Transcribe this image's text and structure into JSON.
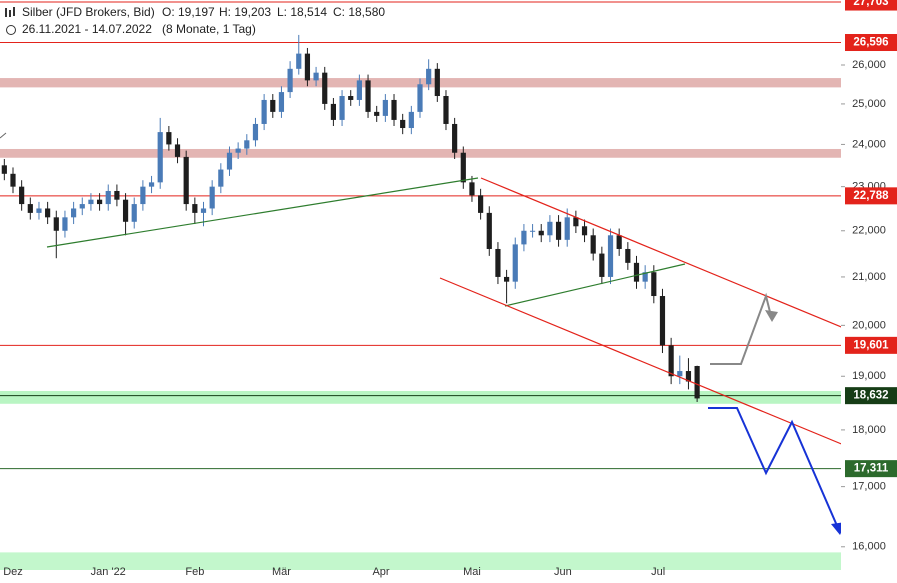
{
  "chart_data": {
    "type": "candlestick",
    "title": "Silber (JFD Brokers, Bid)",
    "ohlc_text": [
      "O: 19,197",
      "H: 19,203",
      "L: 18,514",
      "C: 18,580"
    ],
    "subtitle": "26.11.2021 - 14.07.2022",
    "period": "(8 Monate, 1 Tag)",
    "log_scale": true,
    "up_color": "#4a7bb7",
    "down_color": "#1e1e1e",
    "xlim": [
      -0.5,
      96.5
    ],
    "xticks": [
      {
        "value": 1,
        "label": "Dez"
      },
      {
        "value": 12,
        "label": "Jan '22"
      },
      {
        "value": 22,
        "label": "Feb"
      },
      {
        "value": 32,
        "label": "Mär"
      },
      {
        "value": 43.5,
        "label": "Apr"
      },
      {
        "value": 54,
        "label": "Mai"
      },
      {
        "value": 64.5,
        "label": "Jun"
      },
      {
        "value": 75.5,
        "label": "Jul"
      }
    ],
    "ylim": [
      15630,
      27760
    ],
    "yticks": [
      {
        "value": 16000,
        "label": "16,000"
      },
      {
        "value": 17000,
        "label": "17,000"
      },
      {
        "value": 18000,
        "label": "18,000"
      },
      {
        "value": 19000,
        "label": "19,000"
      },
      {
        "value": 20000,
        "label": "20,000"
      },
      {
        "value": 21000,
        "label": "21,000"
      },
      {
        "value": 22000,
        "label": "22,000"
      },
      {
        "value": 23000,
        "label": "23,000"
      },
      {
        "value": 24000,
        "label": "24,000"
      },
      {
        "value": 25000,
        "label": "25,000"
      },
      {
        "value": 26000,
        "label": "26,000"
      }
    ],
    "zones": [
      {
        "low": 25420,
        "high": 25660,
        "color": "#e3b5b3"
      },
      {
        "low": 23680,
        "high": 23890,
        "color": "#e3b5b3"
      },
      {
        "low": 18480,
        "high": 18720,
        "color": "#b9f5c3"
      },
      {
        "low": 15630,
        "high": 15910,
        "color": "#c3f7cc"
      }
    ],
    "levels": [
      {
        "value": 27703,
        "label": "27,703",
        "color": "#e3231b"
      },
      {
        "value": 26596,
        "label": "26,596",
        "color": "#e3231b"
      },
      {
        "value": 22788,
        "label": "22,788",
        "color": "#e3231b"
      },
      {
        "value": 19601,
        "label": "19,601",
        "color": "#e3231b"
      },
      {
        "value": 18632,
        "label": "18,632",
        "color": "#163d16"
      },
      {
        "value": 17311,
        "label": "17,311",
        "color": "#2c6a2c"
      }
    ],
    "series": [
      {
        "open": [
          23500,
          23300,
          23000,
          22600,
          22400,
          22500,
          22300,
          22000,
          22300,
          22500,
          22600,
          22700,
          22600,
          22900,
          22700,
          22200,
          22600,
          23000,
          23100,
          24300,
          24000,
          23700,
          22600,
          22400,
          22500,
          23000,
          23400,
          23800,
          23900,
          24100,
          24500,
          25100,
          24800,
          25300,
          25900,
          26300,
          25600,
          25800,
          25000,
          24600,
          25200,
          25100,
          25600,
          24800,
          24700,
          25100,
          24600,
          24400,
          24800,
          25500,
          25900,
          25200,
          24500,
          23800,
          23100,
          22800,
          22400,
          21600,
          21000,
          20900,
          21700,
          22000,
          22000,
          21900,
          22200,
          21800,
          22300,
          22100,
          21900,
          21500,
          21000,
          21900,
          21600,
          21300,
          20900,
          21100,
          20600,
          19600,
          19000,
          19100,
          19197
        ],
        "high": [
          23650,
          23450,
          23150,
          22750,
          22650,
          22650,
          22450,
          22450,
          22650,
          22750,
          22850,
          22850,
          23050,
          23050,
          22850,
          22750,
          23150,
          23250,
          24650,
          24450,
          24150,
          23850,
          22750,
          22650,
          23150,
          23550,
          23950,
          24050,
          24250,
          24650,
          25250,
          25250,
          25450,
          26100,
          26800,
          26450,
          25950,
          25950,
          25150,
          25350,
          25350,
          25750,
          25750,
          24950,
          25250,
          25250,
          24750,
          24950,
          25650,
          26150,
          26050,
          25350,
          24650,
          23950,
          23250,
          22950,
          22550,
          21750,
          21150,
          21850,
          22150,
          22150,
          22150,
          22350,
          22350,
          22500,
          22450,
          22250,
          22050,
          21650,
          22050,
          22050,
          21750,
          21450,
          21250,
          21250,
          20750,
          19750,
          19400,
          19350,
          19203
        ],
        "low": [
          23150,
          22850,
          22450,
          22250,
          22250,
          22150,
          21400,
          21850,
          22150,
          22350,
          22450,
          22450,
          22450,
          22550,
          21900,
          22050,
          22450,
          22850,
          22950,
          23850,
          23550,
          22450,
          22150,
          22100,
          22350,
          22850,
          23250,
          23650,
          23750,
          23950,
          24350,
          24650,
          24650,
          25150,
          25750,
          25450,
          25450,
          24850,
          24450,
          24450,
          24950,
          24950,
          24650,
          24550,
          24550,
          24450,
          24250,
          24250,
          24650,
          25350,
          25050,
          24350,
          23650,
          22950,
          22650,
          22250,
          21450,
          20850,
          20450,
          20750,
          21550,
          21850,
          21750,
          21750,
          21650,
          21650,
          21950,
          21750,
          21350,
          20850,
          20850,
          21450,
          21150,
          20750,
          20750,
          20450,
          19450,
          18850,
          18850,
          18750,
          18514
        ],
        "close": [
          23300,
          23000,
          22600,
          22400,
          22500,
          22300,
          22000,
          22300,
          22500,
          22600,
          22700,
          22600,
          22900,
          22700,
          22200,
          22600,
          23000,
          23100,
          24300,
          24000,
          23700,
          22600,
          22400,
          22500,
          23000,
          23400,
          23800,
          23900,
          24100,
          24500,
          25100,
          24800,
          25300,
          25900,
          26300,
          25600,
          25800,
          25000,
          24600,
          25200,
          25100,
          25600,
          24800,
          24700,
          25100,
          24600,
          24400,
          24800,
          25500,
          25900,
          25200,
          24500,
          23800,
          23100,
          22800,
          22400,
          21600,
          21000,
          20900,
          21700,
          22000,
          22000,
          21900,
          22200,
          21800,
          22300,
          22100,
          21900,
          21500,
          21000,
          21900,
          21600,
          21300,
          20900,
          21100,
          20600,
          19600,
          19000,
          19100,
          18900,
          18580
        ]
      }
    ]
  }
}
